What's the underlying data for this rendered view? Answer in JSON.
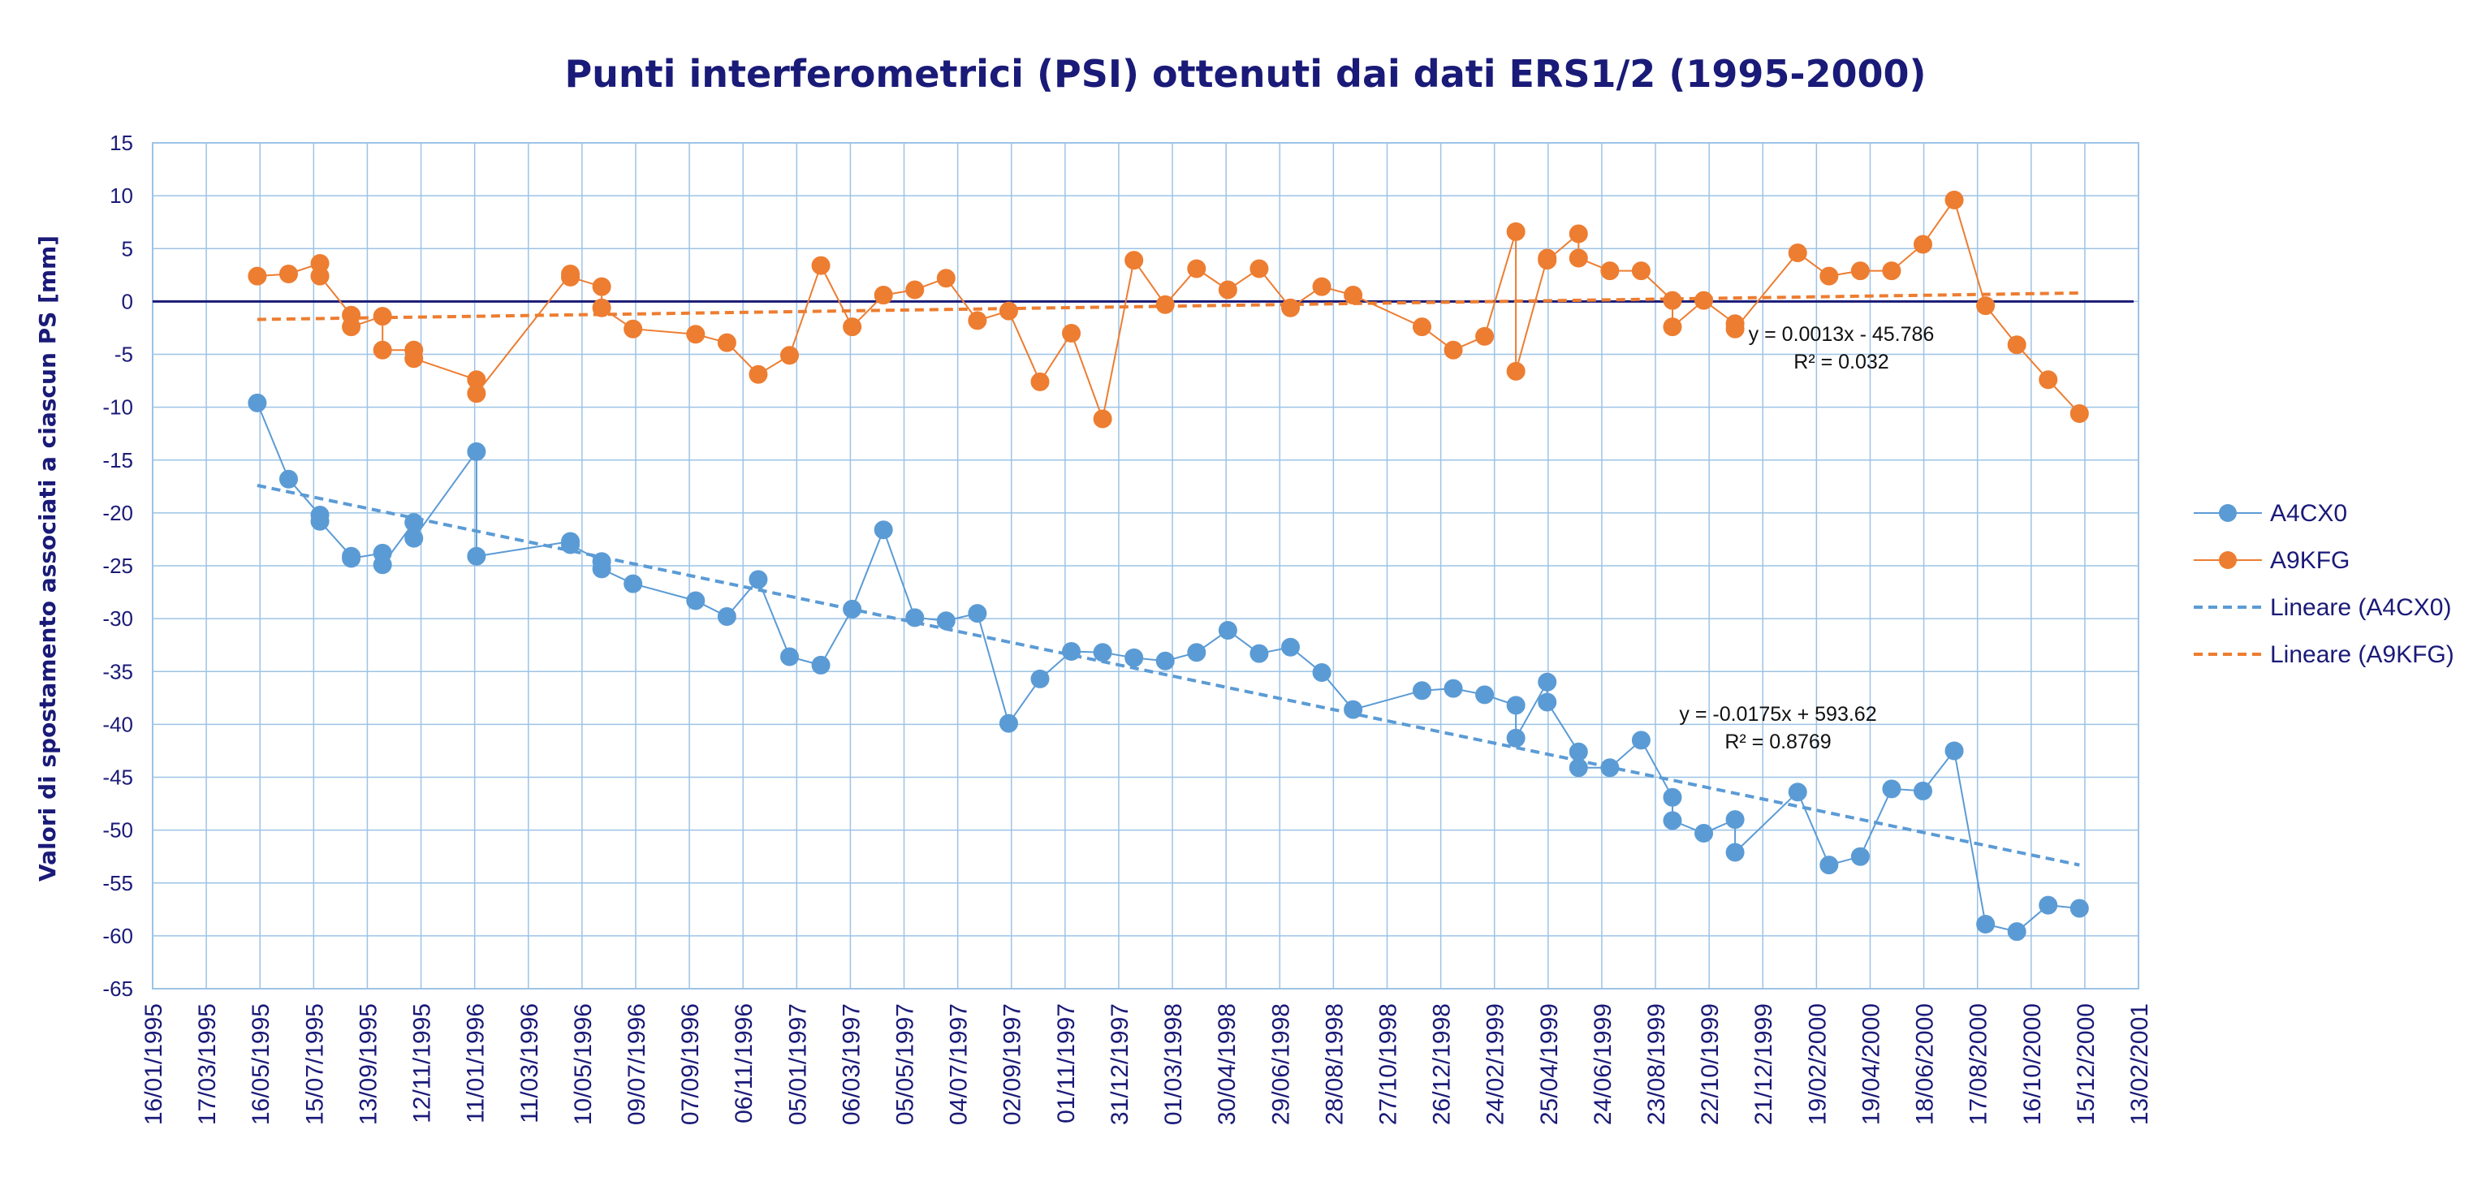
{
  "chart_data": {
    "type": "line",
    "title": "Punti interferometrici (PSI) ottenuti dai dati ERS1/2 (1995-2000)",
    "xlabel": "",
    "ylabel": "Valori di spostamento associati a ciascun PS [mm]",
    "ylim": [
      -65,
      15
    ],
    "y_ticks": [
      15,
      10,
      5,
      0,
      -5,
      -10,
      -15,
      -20,
      -25,
      -30,
      -35,
      -40,
      -45,
      -50,
      -55,
      -60,
      -65
    ],
    "xlim": [
      "1995-01-16",
      "2001-02-13"
    ],
    "x_tick_labels": [
      "16/01/1995",
      "17/03/1995",
      "16/05/1995",
      "15/07/1995",
      "13/09/1995",
      "12/11/1995",
      "11/01/1996",
      "11/03/1996",
      "10/05/1996",
      "09/07/1996",
      "07/09/1996",
      "06/11/1996",
      "05/01/1997",
      "06/03/1997",
      "05/05/1997",
      "04/07/1997",
      "02/09/1997",
      "01/11/1997",
      "31/12/1997",
      "01/03/1998",
      "30/04/1998",
      "29/06/1998",
      "28/08/1998",
      "27/10/1998",
      "26/12/1998",
      "24/02/1999",
      "25/04/1999",
      "24/06/1999",
      "23/08/1999",
      "22/10/1999",
      "21/12/1999",
      "19/02/2000",
      "19/04/2000",
      "18/06/2000",
      "17/08/2000",
      "16/10/2000",
      "15/12/2000",
      "13/02/2001"
    ],
    "grid": true,
    "legend_position": "right",
    "series": [
      {
        "name": "A4CX0",
        "color": "#5b9bd5",
        "points": [
          [
            "1995-05-13",
            -9.6
          ],
          [
            "1995-06-17",
            -16.8
          ],
          [
            "1995-07-22",
            -20.2
          ],
          [
            "1995-07-22",
            -20.8
          ],
          [
            "1995-08-26",
            -24.1
          ],
          [
            "1995-08-26",
            -24.3
          ],
          [
            "1995-09-30",
            -23.8
          ],
          [
            "1995-09-30",
            -24.9
          ],
          [
            "1995-11-04",
            -20.9
          ],
          [
            "1995-11-04",
            -22.4
          ],
          [
            "1996-01-13",
            -14.2
          ],
          [
            "1996-01-13",
            -24.1
          ],
          [
            "1996-04-27",
            -22.7
          ],
          [
            "1996-04-27",
            -23.0
          ],
          [
            "1996-06-01",
            -24.6
          ],
          [
            "1996-06-01",
            -25.3
          ],
          [
            "1996-07-06",
            -26.7
          ],
          [
            "1996-09-14",
            -28.3
          ],
          [
            "1996-10-19",
            -29.8
          ],
          [
            "1996-11-23",
            -26.3
          ],
          [
            "1996-12-28",
            -33.6
          ],
          [
            "1997-02-01",
            -34.4
          ],
          [
            "1997-03-08",
            -29.1
          ],
          [
            "1997-04-12",
            -21.6
          ],
          [
            "1997-05-17",
            -29.9
          ],
          [
            "1997-06-21",
            -30.2
          ],
          [
            "1997-07-26",
            -29.5
          ],
          [
            "1997-08-30",
            -39.9
          ],
          [
            "1997-10-04",
            -35.7
          ],
          [
            "1997-11-08",
            -33.1
          ],
          [
            "1997-12-13",
            -33.2
          ],
          [
            "1998-01-17",
            -33.7
          ],
          [
            "1998-02-21",
            -34.0
          ],
          [
            "1998-03-28",
            -33.2
          ],
          [
            "1998-05-02",
            -31.1
          ],
          [
            "1998-06-06",
            -33.3
          ],
          [
            "1998-07-11",
            -32.7
          ],
          [
            "1998-08-15",
            -35.1
          ],
          [
            "1998-09-19",
            -38.6
          ],
          [
            "1998-12-05",
            -36.8
          ],
          [
            "1999-01-09",
            -36.6
          ],
          [
            "1999-02-13",
            -37.2
          ],
          [
            "1999-03-20",
            -38.2
          ],
          [
            "1999-03-20",
            -41.3
          ],
          [
            "1999-04-24",
            -36.0
          ],
          [
            "1999-04-24",
            -37.9
          ],
          [
            "1999-05-29",
            -42.6
          ],
          [
            "1999-05-29",
            -44.1
          ],
          [
            "1999-07-03",
            -44.1
          ],
          [
            "1999-08-07",
            -41.5
          ],
          [
            "1999-09-11",
            -46.9
          ],
          [
            "1999-09-11",
            -49.1
          ],
          [
            "1999-10-16",
            -50.3
          ],
          [
            "1999-11-20",
            -49.0
          ],
          [
            "1999-11-20",
            -52.1
          ],
          [
            "2000-01-29",
            -46.4
          ],
          [
            "2000-03-04",
            -53.3
          ],
          [
            "2000-04-08",
            -52.5
          ],
          [
            "2000-05-13",
            -46.1
          ],
          [
            "2000-06-17",
            -46.3
          ],
          [
            "2000-07-22",
            -42.5
          ],
          [
            "2000-08-26",
            -58.9
          ],
          [
            "2000-09-30",
            -59.6
          ],
          [
            "2000-11-04",
            -57.1
          ],
          [
            "2000-12-09",
            -57.4
          ]
        ]
      },
      {
        "name": "A9KFG",
        "color": "#ed7d31",
        "points": [
          [
            "1995-05-13",
            2.4
          ],
          [
            "1995-06-17",
            2.6
          ],
          [
            "1995-07-22",
            3.6
          ],
          [
            "1995-07-22",
            2.4
          ],
          [
            "1995-08-26",
            -1.3
          ],
          [
            "1995-08-26",
            -2.4
          ],
          [
            "1995-09-30",
            -1.4
          ],
          [
            "1995-09-30",
            -4.6
          ],
          [
            "1995-11-04",
            -4.6
          ],
          [
            "1995-11-04",
            -5.4
          ],
          [
            "1996-01-13",
            -7.4
          ],
          [
            "1996-01-13",
            -8.7
          ],
          [
            "1996-04-27",
            2.6
          ],
          [
            "1996-04-27",
            2.3
          ],
          [
            "1996-06-01",
            1.4
          ],
          [
            "1996-06-01",
            -0.6
          ],
          [
            "1996-07-06",
            -2.6
          ],
          [
            "1996-09-14",
            -3.1
          ],
          [
            "1996-10-19",
            -3.9
          ],
          [
            "1996-11-23",
            -6.9
          ],
          [
            "1996-12-28",
            -5.1
          ],
          [
            "1997-02-01",
            3.4
          ],
          [
            "1997-03-08",
            -2.4
          ],
          [
            "1997-04-12",
            0.6
          ],
          [
            "1997-05-17",
            1.1
          ],
          [
            "1997-06-21",
            2.2
          ],
          [
            "1997-07-26",
            -1.8
          ],
          [
            "1997-08-30",
            -0.9
          ],
          [
            "1997-10-04",
            -7.6
          ],
          [
            "1997-11-08",
            -3.0
          ],
          [
            "1997-12-13",
            -11.1
          ],
          [
            "1998-01-17",
            3.9
          ],
          [
            "1998-02-21",
            -0.3
          ],
          [
            "1998-03-28",
            3.1
          ],
          [
            "1998-05-02",
            1.1
          ],
          [
            "1998-06-06",
            3.1
          ],
          [
            "1998-07-11",
            -0.6
          ],
          [
            "1998-08-15",
            1.4
          ],
          [
            "1998-09-19",
            0.6
          ],
          [
            "1998-12-05",
            -2.4
          ],
          [
            "1999-01-09",
            -4.6
          ],
          [
            "1999-02-13",
            -3.3
          ],
          [
            "1999-03-20",
            6.6
          ],
          [
            "1999-03-20",
            -6.6
          ],
          [
            "1999-04-24",
            4.1
          ],
          [
            "1999-04-24",
            3.9
          ],
          [
            "1999-05-29",
            6.4
          ],
          [
            "1999-05-29",
            4.1
          ],
          [
            "1999-07-03",
            2.9
          ],
          [
            "1999-08-07",
            2.9
          ],
          [
            "1999-09-11",
            0.1
          ],
          [
            "1999-09-11",
            -2.4
          ],
          [
            "1999-10-16",
            0.1
          ],
          [
            "1999-11-20",
            -2.1
          ],
          [
            "1999-11-20",
            -2.6
          ],
          [
            "2000-01-29",
            4.6
          ],
          [
            "2000-03-04",
            2.4
          ],
          [
            "2000-04-08",
            2.9
          ],
          [
            "2000-05-13",
            2.9
          ],
          [
            "2000-06-17",
            5.4
          ],
          [
            "2000-07-22",
            9.6
          ],
          [
            "2000-08-26",
            -0.4
          ],
          [
            "2000-09-30",
            -4.1
          ],
          [
            "2000-11-04",
            -7.4
          ],
          [
            "2000-12-09",
            -10.6
          ]
        ]
      },
      {
        "name": "Lineare (A4CX0)",
        "type": "trendline",
        "color": "#5b9bd5",
        "points": [
          [
            "1995-05-13",
            -17.4
          ],
          [
            "2000-12-09",
            -53.3
          ]
        ]
      },
      {
        "name": "Lineare (A9KFG)",
        "type": "trendline",
        "color": "#ed7d31",
        "points": [
          [
            "1995-05-13",
            -1.7
          ],
          [
            "2000-12-09",
            0.8
          ]
        ]
      }
    ],
    "annotations": [
      {
        "series": "A9KFG",
        "equation": "y = 0.0013x - 45.786",
        "r2": "R² = 0.032"
      },
      {
        "series": "A4CX0",
        "equation": "y = -0.0175x + 593.62",
        "r2": "R² = 0.8769"
      }
    ]
  }
}
